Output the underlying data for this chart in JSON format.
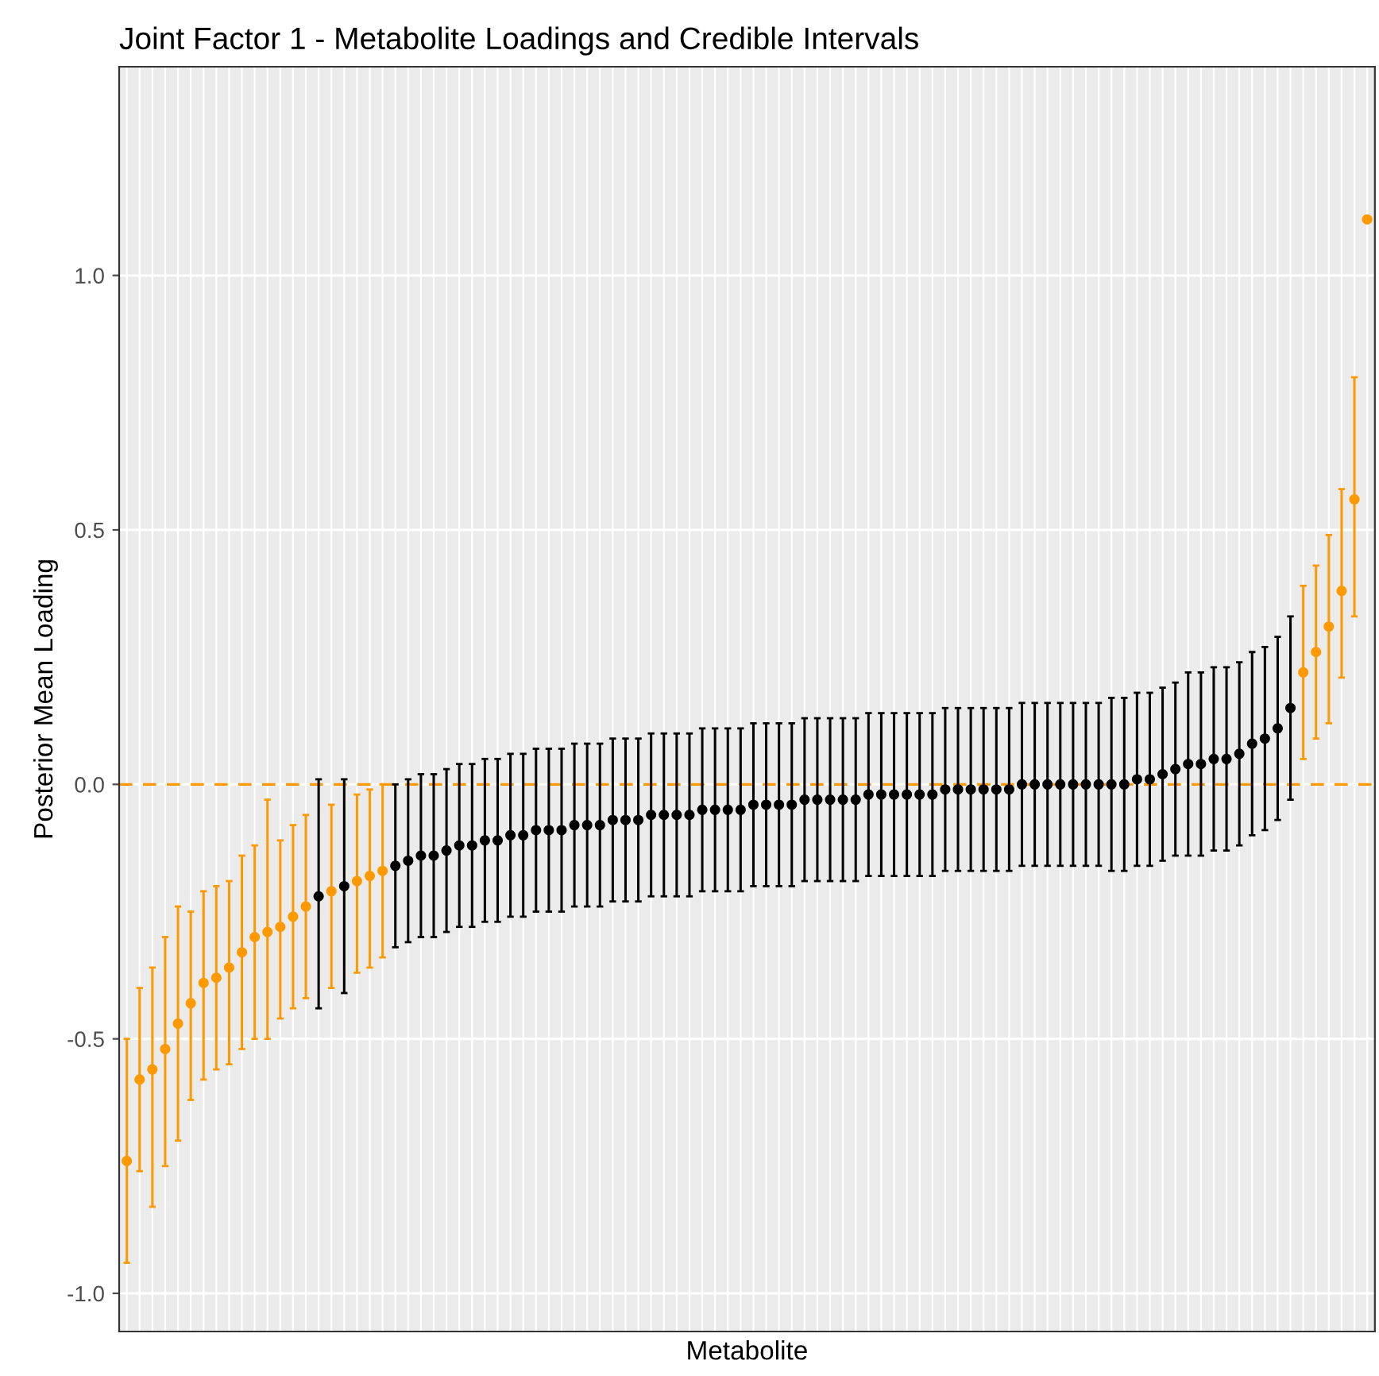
{
  "chart_data": {
    "type": "scatter",
    "title": "Joint Factor 1 - Metabolite Loadings and Credible Intervals",
    "xlabel": "Metabolite",
    "ylabel": "Posterior Mean Loading",
    "categories": [
      null,
      null,
      null,
      null,
      null,
      null,
      null,
      null,
      null,
      null,
      null,
      null,
      null,
      null,
      null,
      null,
      null,
      null,
      null,
      null,
      null,
      null,
      null,
      null,
      null,
      null,
      null,
      null,
      null,
      null,
      null,
      null,
      null,
      null,
      null,
      null,
      null,
      null,
      null,
      null,
      null,
      null,
      null,
      null,
      null,
      null,
      null,
      null,
      null,
      null,
      null,
      null,
      null,
      null,
      null,
      null,
      null,
      null,
      null,
      null,
      null,
      null,
      null,
      null,
      null,
      null,
      null,
      null,
      null,
      null,
      null,
      null,
      null,
      null,
      null,
      null,
      null,
      null,
      null,
      null,
      null,
      null,
      null,
      null,
      null,
      null,
      null,
      null,
      null,
      null,
      null,
      null,
      null,
      null,
      null,
      null,
      null,
      null
    ],
    "values": [
      -0.74,
      -0.58,
      -0.56,
      -0.52,
      -0.47,
      -0.43,
      -0.39,
      -0.38,
      -0.36,
      -0.33,
      -0.3,
      -0.29,
      -0.28,
      -0.26,
      -0.24,
      -0.22,
      -0.21,
      -0.2,
      -0.19,
      -0.18,
      -0.17,
      -0.16,
      -0.15,
      -0.14,
      -0.14,
      -0.13,
      -0.12,
      -0.12,
      -0.11,
      -0.11,
      -0.1,
      -0.1,
      -0.09,
      -0.09,
      -0.09,
      -0.08,
      -0.08,
      -0.08,
      -0.07,
      -0.07,
      -0.07,
      -0.06,
      -0.06,
      -0.06,
      -0.06,
      -0.05,
      -0.05,
      -0.05,
      -0.05,
      -0.04,
      -0.04,
      -0.04,
      -0.04,
      -0.03,
      -0.03,
      -0.03,
      -0.03,
      -0.03,
      -0.02,
      -0.02,
      -0.02,
      -0.02,
      -0.02,
      -0.02,
      -0.01,
      -0.01,
      -0.01,
      -0.01,
      -0.01,
      -0.01,
      0.0,
      0.0,
      0.0,
      0.0,
      0.0,
      0.0,
      0.0,
      0.0,
      0.0,
      0.01,
      0.01,
      0.02,
      0.03,
      0.04,
      0.04,
      0.05,
      0.05,
      0.06,
      0.08,
      0.09,
      0.11,
      0.15,
      0.22,
      0.26,
      0.31,
      0.38,
      0.56,
      1.11
    ],
    "colors": [
      "#ff9900",
      "#ff9900",
      "#ff9900",
      "#ff9900",
      "#ff9900",
      "#ff9900",
      "#ff9900",
      "#ff9900",
      "#ff9900",
      "#ff9900",
      "#ff9900",
      "#ff9900",
      "#ff9900",
      "#ff9900",
      "#ff9900",
      "#000000",
      "#ff9900",
      "#000000",
      "#ff9900",
      "#ff9900",
      "#ff9900",
      "#000000",
      "#000000",
      "#000000",
      "#000000",
      "#000000",
      "#000000",
      "#000000",
      "#000000",
      "#000000",
      "#000000",
      "#000000",
      "#000000",
      "#000000",
      "#000000",
      "#000000",
      "#000000",
      "#000000",
      "#000000",
      "#000000",
      "#000000",
      "#000000",
      "#000000",
      "#000000",
      "#000000",
      "#000000",
      "#000000",
      "#000000",
      "#000000",
      "#000000",
      "#000000",
      "#000000",
      "#000000",
      "#000000",
      "#000000",
      "#000000",
      "#000000",
      "#000000",
      "#000000",
      "#000000",
      "#000000",
      "#000000",
      "#000000",
      "#000000",
      "#000000",
      "#000000",
      "#000000",
      "#000000",
      "#000000",
      "#000000",
      "#000000",
      "#000000",
      "#000000",
      "#000000",
      "#000000",
      "#000000",
      "#000000",
      "#000000",
      "#000000",
      "#000000",
      "#000000",
      "#000000",
      "#000000",
      "#000000",
      "#000000",
      "#000000",
      "#000000",
      "#000000",
      "#000000",
      "#000000",
      "#000000",
      "#000000",
      "#ff9900",
      "#ff9900",
      "#ff9900",
      "#ff9900",
      "#ff9900",
      "#ff9900"
    ],
    "errors": [
      [
        -0.94,
        -0.5
      ],
      [
        -0.76,
        -0.4
      ],
      [
        -0.83,
        -0.36
      ],
      [
        -0.75,
        -0.3
      ],
      [
        -0.7,
        -0.24
      ],
      [
        -0.62,
        -0.25
      ],
      [
        -0.58,
        -0.21
      ],
      [
        -0.56,
        -0.2
      ],
      [
        -0.55,
        -0.19
      ],
      [
        -0.52,
        -0.14
      ],
      [
        -0.5,
        -0.12
      ],
      [
        -0.5,
        -0.03
      ],
      [
        -0.46,
        -0.11
      ],
      [
        -0.44,
        -0.08
      ],
      [
        -0.42,
        -0.06
      ],
      [
        -0.44,
        0.01
      ],
      [
        -0.4,
        -0.04
      ],
      [
        -0.41,
        0.01
      ],
      [
        -0.37,
        -0.02
      ],
      [
        -0.36,
        -0.01
      ],
      [
        -0.34,
        0.0
      ],
      0.16,
      0.16,
      0.16,
      0.16,
      0.16,
      0.16,
      0.16,
      0.16,
      0.16,
      0.16,
      0.16,
      0.16,
      0.16,
      0.16,
      0.16,
      0.16,
      0.16,
      0.16,
      0.16,
      0.16,
      0.16,
      0.16,
      0.16,
      0.16,
      0.16,
      0.16,
      0.16,
      0.16,
      0.16,
      0.16,
      0.16,
      0.16,
      0.16,
      0.16,
      0.16,
      0.16,
      0.16,
      0.16,
      0.16,
      0.16,
      0.16,
      0.16,
      0.16,
      0.16,
      0.16,
      0.16,
      0.16,
      0.16,
      0.16,
      0.16,
      0.16,
      0.16,
      0.16,
      0.16,
      0.16,
      0.16,
      0.17,
      0.17,
      0.17,
      0.17,
      0.17,
      0.17,
      0.18,
      0.18,
      0.18,
      0.18,
      0.18,
      0.18,
      0.18,
      0.18,
      0.18,
      [
        0.05,
        0.39
      ],
      [
        0.09,
        0.43
      ],
      [
        0.12,
        0.49
      ],
      [
        0.21,
        0.58
      ],
      [
        0.33,
        0.8
      ],
      null
    ],
    "ylim": [
      -1.075,
      1.41
    ],
    "yticks": [
      {
        "value": -1.0,
        "label": "-1.0"
      },
      {
        "value": -0.5,
        "label": "-0.5"
      },
      {
        "value": 0.0,
        "label": "0.0"
      },
      {
        "value": 0.5,
        "label": "0.5"
      },
      {
        "value": 1.0,
        "label": "1.0"
      }
    ],
    "ref_lines": [
      {
        "axis": "y",
        "value": 0,
        "color": "#ff9900",
        "line_style": "dashed"
      }
    ],
    "marker": "circle",
    "grid": true,
    "tick_labels": "y"
  }
}
